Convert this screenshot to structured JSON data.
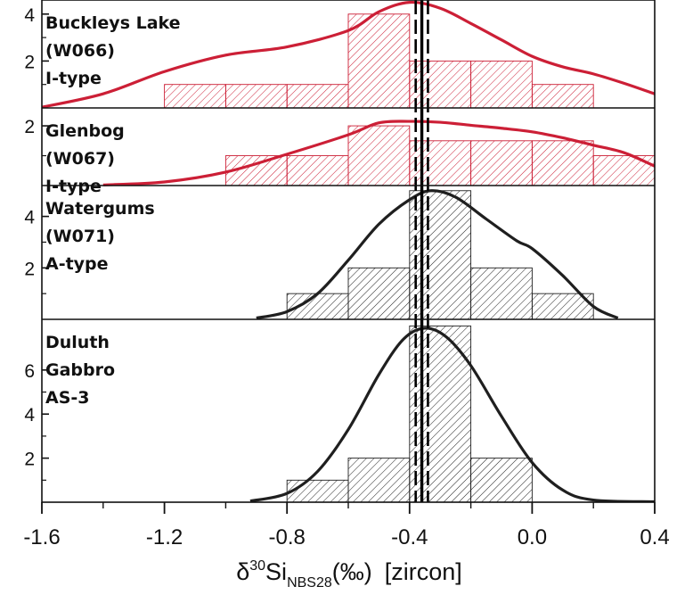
{
  "chart_data": {
    "type": "bar",
    "chart_kind": "stacked histogram panels with density curves",
    "xlabel": {
      "main": "δ",
      "sup": "30",
      "element": "Si",
      "sub": "NBS28",
      "unit": "(‰)",
      "suffix": "[zircon]"
    },
    "xlim": [
      -1.6,
      0.4
    ],
    "xticks": [
      "-1.6",
      "-1.2",
      "-0.8",
      "-0.4",
      "0.0",
      "0.4"
    ],
    "xtick_values": [
      -1.6,
      -1.2,
      -0.8,
      -0.4,
      0.0,
      0.4
    ],
    "bin_width": 0.2,
    "reference_lines": {
      "solid": -0.36,
      "dashed": [
        -0.38,
        -0.34
      ],
      "style": "black solid line with dashed uncertainty bounds"
    },
    "panels": [
      {
        "label_lines": [
          "Buckleys Lake",
          "(W066)",
          "I-type"
        ],
        "color": "#cc1f36",
        "ylim": [
          0,
          4.6
        ],
        "yticks": [
          2,
          4
        ],
        "bins": [
          {
            "x0": -1.2,
            "x1": -1.0,
            "count": 1
          },
          {
            "x0": -1.0,
            "x1": -0.8,
            "count": 1
          },
          {
            "x0": -0.8,
            "x1": -0.6,
            "count": 1
          },
          {
            "x0": -0.6,
            "x1": -0.4,
            "count": 4
          },
          {
            "x0": -0.4,
            "x1": -0.2,
            "count": 2
          },
          {
            "x0": -0.2,
            "x1": 0.0,
            "count": 2
          },
          {
            "x0": 0.0,
            "x1": 0.2,
            "count": 1
          }
        ],
        "density_curve": [
          [
            -1.6,
            0.03
          ],
          [
            -1.4,
            0.6
          ],
          [
            -1.2,
            1.55
          ],
          [
            -1.0,
            2.25
          ],
          [
            -0.8,
            2.6
          ],
          [
            -0.6,
            3.3
          ],
          [
            -0.5,
            4.1
          ],
          [
            -0.4,
            4.5
          ],
          [
            -0.3,
            4.25
          ],
          [
            -0.2,
            3.6
          ],
          [
            -0.1,
            2.9
          ],
          [
            0.0,
            2.2
          ],
          [
            0.1,
            1.75
          ],
          [
            0.2,
            1.45
          ],
          [
            0.3,
            1.05
          ],
          [
            0.4,
            0.6
          ]
        ]
      },
      {
        "label_lines": [
          "Glenbog",
          "(W067)",
          "I-type"
        ],
        "color": "#cc1f36",
        "ylim": [
          0,
          2.6
        ],
        "yticks": [
          2
        ],
        "bins": [
          {
            "x0": -1.0,
            "x1": -0.8,
            "count": 1
          },
          {
            "x0": -0.8,
            "x1": -0.6,
            "count": 1
          },
          {
            "x0": -0.6,
            "x1": -0.4,
            "count": 2
          },
          {
            "x0": -0.4,
            "x1": -0.2,
            "count": 1.5
          },
          {
            "x0": -0.2,
            "x1": 0.0,
            "count": 1.5
          },
          {
            "x0": 0.0,
            "x1": 0.2,
            "count": 1.5
          },
          {
            "x0": 0.2,
            "x1": 0.4,
            "count": 1
          }
        ],
        "density_curve": [
          [
            -1.4,
            0.02
          ],
          [
            -1.2,
            0.12
          ],
          [
            -1.0,
            0.45
          ],
          [
            -0.8,
            1.05
          ],
          [
            -0.6,
            1.7
          ],
          [
            -0.5,
            2.1
          ],
          [
            -0.4,
            2.15
          ],
          [
            -0.3,
            2.12
          ],
          [
            -0.2,
            2.02
          ],
          [
            -0.1,
            1.92
          ],
          [
            0.0,
            1.8
          ],
          [
            0.1,
            1.6
          ],
          [
            0.2,
            1.35
          ],
          [
            0.3,
            1.1
          ],
          [
            0.4,
            0.65
          ]
        ]
      },
      {
        "label_lines": [
          "Watergums",
          "(W071)",
          "A-type"
        ],
        "color": "#1f1f1f",
        "ylim": [
          0,
          5.2
        ],
        "yticks": [
          2,
          4
        ],
        "bins": [
          {
            "x0": -0.8,
            "x1": -0.6,
            "count": 1
          },
          {
            "x0": -0.6,
            "x1": -0.4,
            "count": 2
          },
          {
            "x0": -0.4,
            "x1": -0.2,
            "count": 5
          },
          {
            "x0": -0.2,
            "x1": 0.0,
            "count": 2
          },
          {
            "x0": 0.0,
            "x1": 0.2,
            "count": 1
          }
        ],
        "density_curve": [
          [
            -0.9,
            0.05
          ],
          [
            -0.8,
            0.3
          ],
          [
            -0.7,
            1.0
          ],
          [
            -0.6,
            2.3
          ],
          [
            -0.5,
            3.7
          ],
          [
            -0.4,
            4.65
          ],
          [
            -0.33,
            5.0
          ],
          [
            -0.25,
            4.75
          ],
          [
            -0.15,
            3.9
          ],
          [
            -0.05,
            3.05
          ],
          [
            0.0,
            2.75
          ],
          [
            0.1,
            1.7
          ],
          [
            0.2,
            0.5
          ],
          [
            0.28,
            0.05
          ]
        ]
      },
      {
        "label_lines": [
          "Duluth",
          "Gabbro",
          "AS-3"
        ],
        "color": "#1f1f1f",
        "ylim": [
          0,
          8.3
        ],
        "yticks": [
          2,
          4,
          6
        ],
        "bins": [
          {
            "x0": -0.8,
            "x1": -0.6,
            "count": 1
          },
          {
            "x0": -0.6,
            "x1": -0.4,
            "count": 2
          },
          {
            "x0": -0.4,
            "x1": -0.2,
            "count": 8
          },
          {
            "x0": -0.2,
            "x1": 0.0,
            "count": 2
          }
        ],
        "density_curve": [
          [
            -0.92,
            0.05
          ],
          [
            -0.8,
            0.4
          ],
          [
            -0.7,
            1.4
          ],
          [
            -0.6,
            3.3
          ],
          [
            -0.5,
            5.8
          ],
          [
            -0.42,
            7.4
          ],
          [
            -0.35,
            7.9
          ],
          [
            -0.28,
            7.5
          ],
          [
            -0.2,
            6.2
          ],
          [
            -0.1,
            3.9
          ],
          [
            0.0,
            1.8
          ],
          [
            0.1,
            0.55
          ],
          [
            0.2,
            0.1
          ],
          [
            0.4,
            0.02
          ]
        ]
      }
    ]
  }
}
